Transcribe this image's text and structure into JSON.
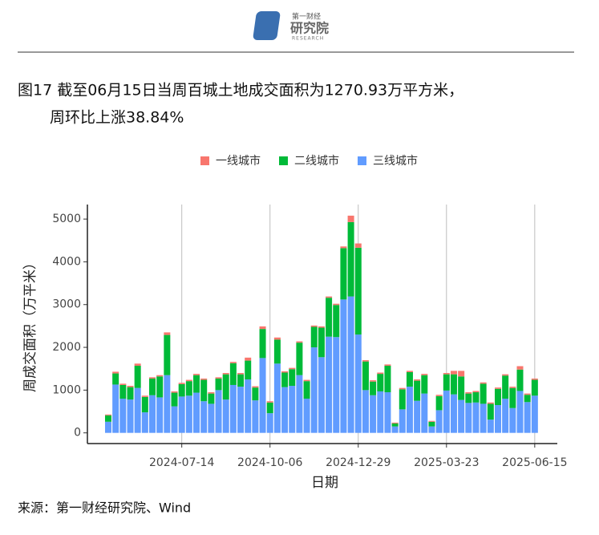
{
  "header": {
    "logo_top": "第一财经",
    "logo_main": "研究院",
    "logo_sub": "RESEARCH"
  },
  "chart_data": {
    "type": "stacked_bar",
    "title": "图17 截至06月15日当周百城土地成交面积为1270.93万平方米，",
    "subtitle": "周环比上涨38.84%",
    "xlabel": "日期",
    "ylabel": "周成交面积（万平米）",
    "legend": "top",
    "categories": [
      null,
      null,
      null,
      null,
      null,
      null,
      null,
      null,
      null,
      null,
      "2024-07-14",
      null,
      null,
      null,
      null,
      null,
      null,
      null,
      null,
      null,
      null,
      null,
      "2024-10-06",
      null,
      null,
      null,
      null,
      null,
      null,
      null,
      null,
      null,
      null,
      null,
      "2024-12-29",
      null,
      null,
      null,
      null,
      null,
      null,
      null,
      null,
      null,
      null,
      null,
      "2025-03-23",
      null,
      null,
      null,
      null,
      null,
      null,
      null,
      null,
      null,
      null,
      null,
      "2025-06-15"
    ],
    "series": [
      {
        "name": "三线城市",
        "color": "#619CFF",
        "values": [
          260,
          1130,
          800,
          780,
          1050,
          480,
          880,
          830,
          1350,
          620,
          850,
          870,
          940,
          740,
          680,
          1000,
          780,
          1120,
          1080,
          1250,
          760,
          1750,
          460,
          1620,
          1070,
          1100,
          1350,
          800,
          2000,
          1770,
          2250,
          2240,
          3120,
          3190,
          2300,
          1000,
          880,
          970,
          950,
          150,
          550,
          1080,
          750,
          920,
          150,
          530,
          990,
          900,
          770,
          700,
          710,
          680,
          310,
          650,
          800,
          580,
          980,
          720,
          870
        ]
      },
      {
        "name": "二线城市",
        "color": "#00BA38",
        "values": [
          150,
          260,
          320,
          290,
          520,
          360,
          390,
          490,
          940,
          320,
          290,
          340,
          410,
          500,
          240,
          270,
          590,
          510,
          290,
          440,
          300,
          680,
          250,
          560,
          340,
          390,
          760,
          410,
          480,
          690,
          910,
          750,
          1200,
          1740,
          2030,
          670,
          320,
          410,
          620,
          70,
          470,
          340,
          470,
          430,
          110,
          330,
          380,
          470,
          550,
          220,
          240,
          470,
          370,
          380,
          540,
          470,
          500,
          170,
          370
        ]
      },
      {
        "name": "一线城市",
        "color": "#F8766D",
        "values": [
          20,
          40,
          30,
          30,
          50,
          30,
          30,
          30,
          60,
          30,
          30,
          30,
          30,
          30,
          30,
          30,
          30,
          30,
          30,
          70,
          30,
          60,
          30,
          50,
          30,
          30,
          30,
          30,
          30,
          30,
          30,
          30,
          40,
          150,
          100,
          30,
          30,
          30,
          30,
          20,
          30,
          30,
          30,
          30,
          20,
          30,
          30,
          80,
          130,
          30,
          30,
          30,
          30,
          30,
          30,
          30,
          80,
          30,
          30
        ]
      }
    ],
    "ylim": [
      -250,
      5340
    ],
    "yticks": [
      0,
      1000,
      2000,
      3000,
      4000,
      5000
    ],
    "grid": "x"
  },
  "source": "来源：第一财经研究院、Wind"
}
